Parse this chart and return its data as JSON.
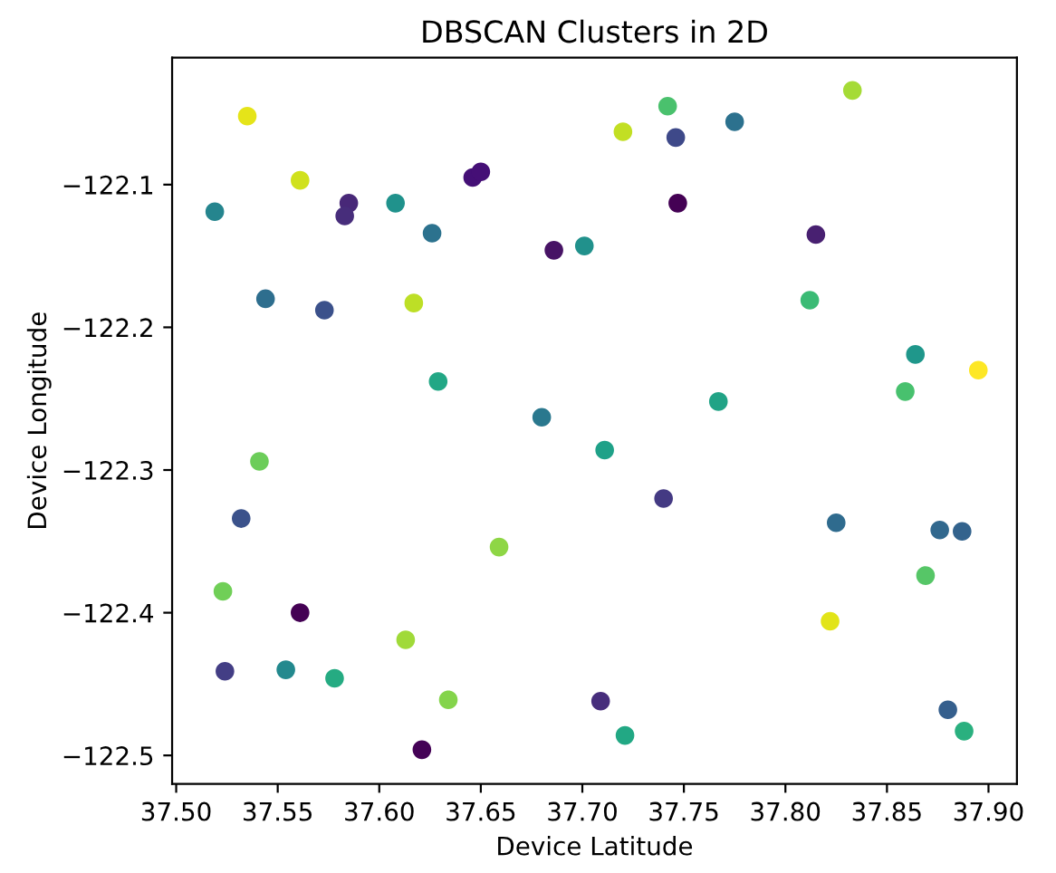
{
  "chart_data": {
    "type": "scatter",
    "title": "DBSCAN Clusters in 2D",
    "xlabel": "Device Latitude",
    "ylabel": "Device Longitude",
    "x": [
      37.535,
      37.561,
      37.519,
      37.585,
      37.583,
      37.608,
      37.626,
      37.646,
      37.65,
      37.544,
      37.573,
      37.617,
      37.629,
      37.686,
      37.68,
      37.701,
      37.742,
      37.72,
      37.746,
      37.775,
      37.833,
      37.747,
      37.815,
      37.812,
      37.864,
      37.895,
      37.859,
      37.767,
      37.541,
      37.532,
      37.523,
      37.561,
      37.524,
      37.554,
      37.578,
      37.613,
      37.634,
      37.621,
      37.659,
      37.711,
      37.74,
      37.825,
      37.876,
      37.887,
      37.869,
      37.822,
      37.709,
      37.721,
      37.88,
      37.888
    ],
    "values": [
      -122.052,
      -122.097,
      -122.119,
      -122.113,
      -122.122,
      -122.113,
      -122.134,
      -122.095,
      -122.091,
      -122.18,
      -122.188,
      -122.183,
      -122.238,
      -122.146,
      -122.263,
      -122.143,
      -122.045,
      -122.063,
      -122.067,
      -122.056,
      -122.034,
      -122.113,
      -122.135,
      -122.181,
      -122.219,
      -122.23,
      -122.245,
      -122.252,
      -122.294,
      -122.334,
      -122.385,
      -122.4,
      -122.441,
      -122.44,
      -122.446,
      -122.419,
      -122.461,
      -122.496,
      -122.354,
      -122.286,
      -122.32,
      -122.337,
      -122.342,
      -122.343,
      -122.374,
      -122.406,
      -122.462,
      -122.486,
      -122.468,
      -122.483
    ],
    "colors": [
      "#e5e419",
      "#d0e11c",
      "#25858e",
      "#482878",
      "#472d7b",
      "#20928c",
      "#2c728e",
      "#440f76",
      "#450f76",
      "#2e6e8e",
      "#3b518b",
      "#bddf26",
      "#22a785",
      "#471365",
      "#2a788e",
      "#21918c",
      "#4ac16d",
      "#c2df23",
      "#3e4989",
      "#2c718e",
      "#a5db36",
      "#440154",
      "#482071",
      "#3bbb75",
      "#1f978b",
      "#fde725",
      "#48c16e",
      "#21a386",
      "#6ccd5a",
      "#3b528b",
      "#70cf57",
      "#440154",
      "#433e85",
      "#23898e",
      "#25ab82",
      "#a0da39",
      "#84d44b",
      "#440256",
      "#8ed645",
      "#1fa188",
      "#443a83",
      "#2f6b8e",
      "#31688e",
      "#33638d",
      "#56c667",
      "#e2e418",
      "#472e7c",
      "#22a884",
      "#355f8d",
      "#2ab07f"
    ],
    "marker": "circle",
    "xlim": [
      37.498,
      37.914
    ],
    "ylim": [
      -122.52,
      -122.011
    ],
    "xticks": [
      {
        "value": 37.5,
        "label": "37.50"
      },
      {
        "value": 37.55,
        "label": "37.55"
      },
      {
        "value": 37.6,
        "label": "37.60"
      },
      {
        "value": 37.65,
        "label": "37.65"
      },
      {
        "value": 37.7,
        "label": "37.70"
      },
      {
        "value": 37.75,
        "label": "37.75"
      },
      {
        "value": 37.8,
        "label": "37.80"
      },
      {
        "value": 37.85,
        "label": "37.85"
      },
      {
        "value": 37.9,
        "label": "37.90"
      }
    ],
    "yticks": [
      {
        "value": -122.5,
        "label": "−122.5"
      },
      {
        "value": -122.4,
        "label": "−122.4"
      },
      {
        "value": -122.3,
        "label": "−122.3"
      },
      {
        "value": -122.2,
        "label": "−122.2"
      },
      {
        "value": -122.1,
        "label": "−122.1"
      }
    ],
    "grid": false
  }
}
